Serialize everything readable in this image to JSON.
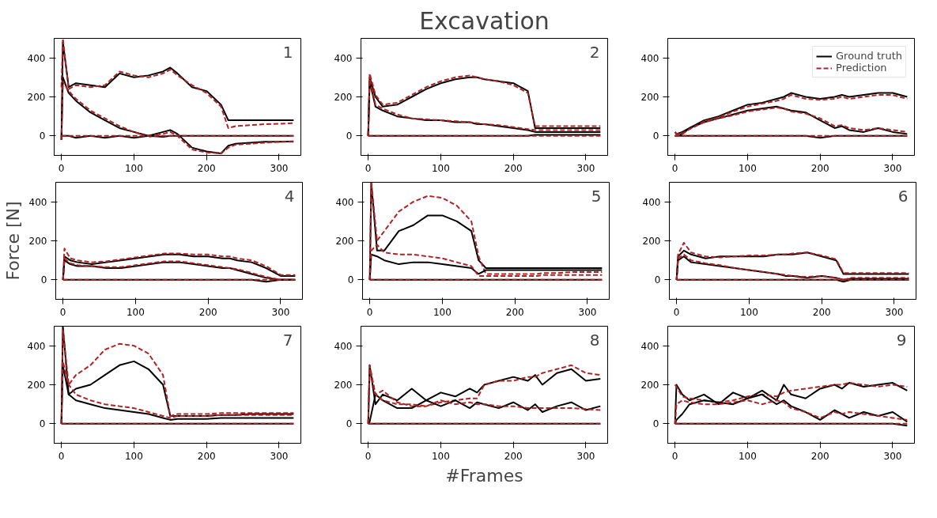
{
  "chart_data": [
    {
      "type": "line",
      "annotations": [
        "1"
      ],
      "x": [
        0,
        2,
        10,
        20,
        40,
        60,
        80,
        100,
        120,
        140,
        150,
        160,
        180,
        200,
        220,
        230,
        240,
        260,
        280,
        300,
        320
      ],
      "xlim": [
        -10,
        330
      ],
      "xticks": [
        0,
        100,
        200,
        300
      ],
      "ylim": [
        -100,
        500
      ],
      "yticks": [
        0,
        200,
        400
      ],
      "grid": false,
      "legend": false,
      "series": [
        {
          "color": "#000000",
          "line_style": "solid",
          "values": [
            -20,
            480,
            250,
            270,
            260,
            250,
            320,
            300,
            310,
            330,
            350,
            320,
            250,
            230,
            160,
            80,
            80,
            80,
            80,
            80,
            80
          ]
        },
        {
          "color": "#b22222",
          "line_style": "dashed",
          "values": [
            250,
            500,
            240,
            260,
            250,
            260,
            330,
            310,
            300,
            320,
            340,
            310,
            260,
            220,
            150,
            40,
            50,
            55,
            60,
            62,
            65
          ]
        },
        {
          "color": "#000000",
          "line_style": "solid",
          "values": [
            -20,
            300,
            220,
            180,
            120,
            80,
            40,
            20,
            0,
            20,
            30,
            10,
            -60,
            -80,
            -90,
            -50,
            -40,
            -35,
            -30,
            -30,
            -28
          ]
        },
        {
          "color": "#b22222",
          "line_style": "dashed",
          "values": [
            -20,
            280,
            230,
            190,
            130,
            90,
            50,
            20,
            -5,
            10,
            20,
            0,
            -70,
            -85,
            -90,
            -60,
            -45,
            -40,
            -35,
            -30,
            -30
          ]
        },
        {
          "color": "#000000",
          "line_style": "solid",
          "values": [
            0,
            0,
            0,
            -10,
            0,
            -10,
            0,
            -10,
            0,
            -5,
            0,
            0,
            0,
            0,
            0,
            0,
            0,
            0,
            0,
            0,
            0
          ]
        },
        {
          "color": "#b22222",
          "line_style": "dashed",
          "values": [
            0,
            0,
            0,
            0,
            0,
            0,
            0,
            0,
            0,
            0,
            0,
            0,
            0,
            0,
            0,
            0,
            0,
            0,
            0,
            0,
            0
          ]
        }
      ]
    },
    {
      "type": "line",
      "title": "Excavation",
      "annotations": [
        "2"
      ],
      "x": [
        0,
        2,
        10,
        20,
        40,
        60,
        80,
        100,
        120,
        140,
        150,
        160,
        180,
        200,
        220,
        230,
        240,
        260,
        280,
        300,
        320
      ],
      "xlim": [
        -10,
        330
      ],
      "xticks": [
        0,
        100,
        200,
        300
      ],
      "ylim": [
        -100,
        500
      ],
      "yticks": [
        0,
        200,
        400
      ],
      "grid": false,
      "legend": false,
      "series": [
        {
          "color": "#000000",
          "line_style": "solid",
          "values": [
            0,
            300,
            200,
            150,
            160,
            200,
            240,
            270,
            290,
            300,
            300,
            290,
            280,
            270,
            230,
            40,
            40,
            40,
            40,
            40,
            40
          ]
        },
        {
          "color": "#b22222",
          "line_style": "dashed",
          "values": [
            0,
            320,
            210,
            160,
            170,
            210,
            250,
            280,
            300,
            310,
            300,
            290,
            280,
            260,
            220,
            50,
            50,
            50,
            50,
            50,
            50
          ]
        },
        {
          "color": "#000000",
          "line_style": "solid",
          "values": [
            0,
            280,
            150,
            130,
            100,
            90,
            80,
            80,
            70,
            70,
            60,
            60,
            50,
            40,
            30,
            20,
            20,
            20,
            20,
            20,
            20
          ]
        },
        {
          "color": "#b22222",
          "line_style": "dashed",
          "values": [
            0,
            290,
            160,
            140,
            110,
            90,
            85,
            80,
            75,
            70,
            65,
            60,
            55,
            45,
            35,
            30,
            30,
            30,
            30,
            30,
            30
          ]
        },
        {
          "color": "#000000",
          "line_style": "solid",
          "values": [
            0,
            0,
            0,
            0,
            0,
            0,
            0,
            0,
            0,
            0,
            0,
            0,
            0,
            0,
            0,
            5,
            5,
            5,
            5,
            5,
            5
          ]
        },
        {
          "color": "#b22222",
          "line_style": "dashed",
          "values": [
            0,
            0,
            0,
            0,
            0,
            0,
            0,
            0,
            0,
            0,
            0,
            0,
            0,
            0,
            0,
            0,
            0,
            0,
            0,
            0,
            0
          ]
        }
      ]
    },
    {
      "type": "line",
      "x": [
        0,
        2,
        10,
        20,
        40,
        60,
        80,
        100,
        120,
        140,
        150,
        160,
        180,
        200,
        220,
        230,
        240,
        260,
        280,
        300,
        320
      ],
      "xlim": [
        -10,
        330
      ],
      "xticks": [
        0,
        100,
        200,
        300
      ],
      "ylim": [
        -100,
        500
      ],
      "yticks": [
        0,
        200,
        400
      ],
      "grid": false,
      "legend": "top right",
      "series": [
        {
          "name": "Ground truth",
          "color": "#000000",
          "line_style": "solid",
          "values": [
            20,
            10,
            20,
            40,
            80,
            100,
            130,
            160,
            170,
            190,
            200,
            220,
            200,
            190,
            200,
            210,
            200,
            210,
            220,
            220,
            200
          ]
        },
        {
          "name": "Prediction",
          "color": "#b22222",
          "line_style": "dashed",
          "values": [
            20,
            10,
            15,
            35,
            75,
            95,
            125,
            150,
            165,
            180,
            190,
            210,
            190,
            185,
            190,
            200,
            190,
            200,
            210,
            210,
            190
          ]
        },
        {
          "color": "#000000",
          "line_style": "solid",
          "values": [
            0,
            0,
            10,
            40,
            70,
            90,
            110,
            130,
            140,
            150,
            140,
            130,
            120,
            80,
            40,
            50,
            30,
            20,
            40,
            20,
            10
          ]
        },
        {
          "color": "#b22222",
          "line_style": "dashed",
          "values": [
            0,
            0,
            10,
            35,
            70,
            90,
            105,
            125,
            135,
            145,
            140,
            125,
            115,
            90,
            50,
            55,
            40,
            30,
            40,
            30,
            20
          ]
        },
        {
          "color": "#000000",
          "line_style": "solid",
          "values": [
            0,
            0,
            0,
            0,
            0,
            0,
            0,
            0,
            0,
            0,
            0,
            0,
            0,
            -10,
            0,
            0,
            0,
            0,
            0,
            0,
            0
          ]
        },
        {
          "color": "#b22222",
          "line_style": "dashed",
          "values": [
            0,
            0,
            0,
            0,
            0,
            0,
            0,
            0,
            0,
            0,
            0,
            0,
            0,
            0,
            0,
            0,
            0,
            0,
            0,
            0,
            0
          ]
        }
      ]
    },
    {
      "type": "line",
      "ylabel": "Force [N]",
      "annotations": [
        "4"
      ],
      "x": [
        0,
        2,
        10,
        20,
        40,
        60,
        80,
        100,
        120,
        140,
        150,
        160,
        180,
        200,
        220,
        230,
        240,
        260,
        280,
        300,
        320
      ],
      "xlim": [
        -10,
        330
      ],
      "xticks": [
        0,
        100,
        200,
        300
      ],
      "ylim": [
        -100,
        500
      ],
      "yticks": [
        0,
        200,
        400
      ],
      "grid": false,
      "legend": false,
      "series": [
        {
          "color": "#000000",
          "line_style": "solid",
          "values": [
            0,
            120,
            100,
            90,
            80,
            90,
            100,
            110,
            120,
            130,
            130,
            130,
            120,
            120,
            110,
            110,
            100,
            90,
            60,
            20,
            20
          ]
        },
        {
          "color": "#b22222",
          "line_style": "dashed",
          "values": [
            0,
            160,
            110,
            100,
            90,
            95,
            105,
            115,
            125,
            135,
            135,
            135,
            130,
            130,
            120,
            120,
            110,
            100,
            70,
            25,
            25
          ]
        },
        {
          "color": "#000000",
          "line_style": "solid",
          "values": [
            0,
            100,
            80,
            70,
            70,
            60,
            60,
            70,
            80,
            90,
            90,
            90,
            80,
            70,
            60,
            60,
            50,
            30,
            10,
            0,
            0
          ]
        },
        {
          "color": "#b22222",
          "line_style": "dashed",
          "values": [
            0,
            110,
            85,
            75,
            70,
            65,
            65,
            75,
            85,
            95,
            95,
            95,
            85,
            75,
            65,
            60,
            55,
            35,
            15,
            0,
            0
          ]
        },
        {
          "color": "#000000",
          "line_style": "solid",
          "values": [
            0,
            0,
            0,
            0,
            0,
            0,
            0,
            0,
            0,
            0,
            0,
            0,
            0,
            0,
            0,
            0,
            0,
            0,
            -10,
            0,
            0
          ]
        },
        {
          "color": "#b22222",
          "line_style": "dashed",
          "values": [
            0,
            0,
            0,
            0,
            0,
            0,
            0,
            0,
            0,
            0,
            0,
            0,
            0,
            0,
            0,
            0,
            0,
            0,
            0,
            0,
            0
          ]
        }
      ]
    },
    {
      "type": "line",
      "annotations": [
        "5"
      ],
      "x": [
        0,
        2,
        10,
        20,
        40,
        60,
        80,
        100,
        120,
        140,
        150,
        160,
        180,
        200,
        220,
        230,
        240,
        260,
        280,
        300,
        320
      ],
      "xlim": [
        -10,
        330
      ],
      "xticks": [
        0,
        100,
        200,
        300
      ],
      "ylim": [
        -100,
        500
      ],
      "yticks": [
        0,
        200,
        400
      ],
      "grid": false,
      "legend": false,
      "series": [
        {
          "color": "#000000",
          "line_style": "solid",
          "values": [
            0,
            500,
            150,
            150,
            250,
            280,
            330,
            330,
            300,
            250,
            100,
            60,
            60,
            60,
            60,
            60,
            60,
            60,
            60,
            60,
            60
          ]
        },
        {
          "color": "#b22222",
          "line_style": "dashed",
          "values": [
            0,
            500,
            200,
            250,
            350,
            400,
            430,
            420,
            380,
            300,
            120,
            30,
            30,
            30,
            30,
            30,
            35,
            35,
            40,
            40,
            40
          ]
        },
        {
          "color": "#000000",
          "line_style": "solid",
          "values": [
            0,
            130,
            120,
            100,
            80,
            90,
            90,
            80,
            70,
            60,
            30,
            50,
            50,
            50,
            50,
            50,
            50,
            50,
            50,
            50,
            50
          ]
        },
        {
          "color": "#b22222",
          "line_style": "dashed",
          "values": [
            0,
            150,
            180,
            140,
            130,
            130,
            120,
            110,
            90,
            70,
            20,
            20,
            20,
            20,
            20,
            20,
            25,
            25,
            25,
            25,
            25
          ]
        },
        {
          "color": "#000000",
          "line_style": "solid",
          "values": [
            0,
            0,
            0,
            0,
            0,
            0,
            0,
            0,
            0,
            0,
            0,
            0,
            0,
            0,
            0,
            0,
            0,
            0,
            0,
            0,
            0
          ]
        },
        {
          "color": "#b22222",
          "line_style": "dashed",
          "values": [
            0,
            0,
            0,
            0,
            0,
            0,
            0,
            0,
            0,
            0,
            0,
            0,
            0,
            0,
            0,
            0,
            0,
            0,
            0,
            0,
            0
          ]
        }
      ]
    },
    {
      "type": "line",
      "annotations": [
        "6"
      ],
      "x": [
        0,
        2,
        10,
        20,
        40,
        60,
        80,
        100,
        120,
        140,
        150,
        160,
        180,
        200,
        220,
        230,
        240,
        260,
        280,
        300,
        320
      ],
      "xlim": [
        -10,
        330
      ],
      "xticks": [
        0,
        100,
        200,
        300
      ],
      "ylim": [
        -100,
        500
      ],
      "yticks": [
        0,
        200,
        400
      ],
      "grid": false,
      "legend": false,
      "series": [
        {
          "color": "#000000",
          "line_style": "solid",
          "values": [
            0,
            120,
            150,
            130,
            110,
            120,
            120,
            120,
            120,
            130,
            130,
            130,
            140,
            120,
            100,
            30,
            30,
            30,
            30,
            30,
            30
          ]
        },
        {
          "color": "#b22222",
          "line_style": "dashed",
          "values": [
            0,
            130,
            190,
            140,
            120,
            115,
            120,
            125,
            125,
            130,
            130,
            135,
            140,
            125,
            105,
            35,
            35,
            35,
            35,
            35,
            35
          ]
        },
        {
          "color": "#000000",
          "line_style": "solid",
          "values": [
            0,
            100,
            120,
            90,
            80,
            70,
            60,
            50,
            40,
            30,
            20,
            20,
            10,
            20,
            10,
            0,
            5,
            5,
            5,
            5,
            5
          ]
        },
        {
          "color": "#b22222",
          "line_style": "dashed",
          "values": [
            0,
            110,
            130,
            100,
            85,
            75,
            60,
            50,
            40,
            30,
            25,
            20,
            15,
            20,
            10,
            0,
            10,
            10,
            10,
            10,
            10
          ]
        },
        {
          "color": "#000000",
          "line_style": "solid",
          "values": [
            0,
            0,
            0,
            0,
            0,
            0,
            0,
            0,
            0,
            0,
            0,
            0,
            0,
            0,
            0,
            -10,
            0,
            0,
            0,
            0,
            0
          ]
        },
        {
          "color": "#b22222",
          "line_style": "dashed",
          "values": [
            0,
            0,
            0,
            0,
            0,
            0,
            0,
            0,
            0,
            0,
            0,
            0,
            0,
            0,
            0,
            0,
            0,
            0,
            0,
            0,
            0
          ]
        }
      ]
    },
    {
      "type": "line",
      "annotations": [
        "7"
      ],
      "x": [
        0,
        2,
        10,
        20,
        40,
        60,
        80,
        100,
        120,
        140,
        150,
        160,
        180,
        200,
        220,
        230,
        240,
        260,
        280,
        300,
        320
      ],
      "xlim": [
        -10,
        330
      ],
      "xticks": [
        0,
        100,
        200,
        300
      ],
      "ylim": [
        -100,
        500
      ],
      "yticks": [
        0,
        200,
        400
      ],
      "grid": false,
      "legend": false,
      "series": [
        {
          "color": "#000000",
          "line_style": "solid",
          "values": [
            0,
            500,
            150,
            180,
            200,
            250,
            300,
            320,
            280,
            200,
            40,
            40,
            40,
            40,
            45,
            45,
            45,
            50,
            50,
            50,
            50
          ]
        },
        {
          "color": "#b22222",
          "line_style": "dashed",
          "values": [
            0,
            480,
            200,
            250,
            300,
            380,
            410,
            400,
            360,
            250,
            40,
            50,
            50,
            50,
            55,
            55,
            55,
            55,
            55,
            55,
            55
          ]
        },
        {
          "color": "#000000",
          "line_style": "solid",
          "values": [
            0,
            300,
            150,
            120,
            100,
            80,
            70,
            60,
            50,
            30,
            20,
            25,
            25,
            25,
            30,
            30,
            30,
            30,
            30,
            30,
            30
          ]
        },
        {
          "color": "#b22222",
          "line_style": "dashed",
          "values": [
            0,
            320,
            200,
            150,
            120,
            100,
            90,
            80,
            60,
            40,
            30,
            40,
            40,
            40,
            45,
            45,
            45,
            45,
            45,
            45,
            45
          ]
        },
        {
          "color": "#000000",
          "line_style": "solid",
          "values": [
            0,
            0,
            0,
            0,
            0,
            0,
            0,
            0,
            0,
            0,
            0,
            0,
            0,
            0,
            0,
            0,
            0,
            0,
            0,
            0,
            0
          ]
        },
        {
          "color": "#b22222",
          "line_style": "dashed",
          "values": [
            0,
            0,
            0,
            0,
            0,
            0,
            0,
            0,
            0,
            0,
            0,
            0,
            0,
            0,
            0,
            0,
            0,
            0,
            0,
            0,
            0
          ]
        }
      ]
    },
    {
      "type": "line",
      "xlabel": "#Frames",
      "annotations": [
        "8"
      ],
      "x": [
        0,
        2,
        10,
        20,
        40,
        60,
        80,
        100,
        120,
        140,
        150,
        160,
        180,
        200,
        220,
        230,
        240,
        260,
        280,
        300,
        320
      ],
      "xlim": [
        -10,
        330
      ],
      "xticks": [
        0,
        100,
        200,
        300
      ],
      "ylim": [
        -100,
        500
      ],
      "yticks": [
        0,
        200,
        400
      ],
      "grid": false,
      "legend": false,
      "series": [
        {
          "color": "#000000",
          "line_style": "solid",
          "values": [
            0,
            300,
            100,
            150,
            120,
            180,
            120,
            160,
            140,
            180,
            160,
            200,
            220,
            240,
            220,
            250,
            200,
            260,
            280,
            220,
            230
          ]
        },
        {
          "color": "#b22222",
          "line_style": "dashed",
          "values": [
            0,
            300,
            150,
            170,
            110,
            90,
            90,
            110,
            120,
            130,
            130,
            200,
            220,
            220,
            240,
            240,
            260,
            280,
            300,
            260,
            250
          ]
        },
        {
          "color": "#000000",
          "line_style": "solid",
          "values": [
            0,
            10,
            150,
            120,
            80,
            80,
            120,
            90,
            120,
            80,
            110,
            100,
            80,
            110,
            70,
            100,
            60,
            90,
            110,
            70,
            90
          ]
        },
        {
          "color": "#b22222",
          "line_style": "dashed",
          "values": [
            0,
            280,
            150,
            120,
            100,
            100,
            90,
            120,
            100,
            110,
            100,
            100,
            90,
            90,
            80,
            80,
            80,
            80,
            80,
            75,
            70
          ]
        },
        {
          "color": "#000000",
          "line_style": "solid",
          "values": [
            0,
            0,
            0,
            0,
            0,
            0,
            0,
            0,
            0,
            0,
            0,
            0,
            0,
            0,
            0,
            0,
            0,
            0,
            0,
            0,
            0
          ]
        },
        {
          "color": "#b22222",
          "line_style": "dashed",
          "values": [
            0,
            0,
            0,
            0,
            0,
            0,
            0,
            0,
            0,
            0,
            0,
            0,
            0,
            0,
            0,
            0,
            0,
            0,
            0,
            0,
            0
          ]
        }
      ]
    },
    {
      "type": "line",
      "annotations": [
        "9"
      ],
      "x": [
        0,
        2,
        10,
        20,
        40,
        60,
        80,
        100,
        120,
        140,
        150,
        160,
        180,
        200,
        220,
        230,
        240,
        260,
        280,
        300,
        320
      ],
      "xlim": [
        -10,
        330
      ],
      "xticks": [
        0,
        100,
        200,
        300
      ],
      "ylim": [
        -100,
        500
      ],
      "yticks": [
        0,
        200,
        400
      ],
      "grid": false,
      "legend": false,
      "series": [
        {
          "color": "#000000",
          "line_style": "solid",
          "values": [
            0,
            200,
            150,
            120,
            150,
            100,
            160,
            130,
            170,
            120,
            200,
            150,
            130,
            180,
            200,
            180,
            210,
            190,
            200,
            210,
            170
          ]
        },
        {
          "color": "#b22222",
          "line_style": "dashed",
          "values": [
            200,
            190,
            140,
            130,
            120,
            110,
            120,
            140,
            150,
            140,
            160,
            170,
            180,
            190,
            200,
            200,
            210,
            200,
            190,
            200,
            190
          ]
        },
        {
          "color": "#000000",
          "line_style": "solid",
          "values": [
            0,
            20,
            50,
            100,
            120,
            110,
            100,
            130,
            150,
            100,
            120,
            90,
            60,
            20,
            70,
            50,
            30,
            60,
            40,
            60,
            10
          ]
        },
        {
          "color": "#b22222",
          "line_style": "dashed",
          "values": [
            0,
            100,
            120,
            110,
            100,
            100,
            110,
            120,
            100,
            120,
            110,
            80,
            60,
            30,
            60,
            50,
            60,
            50,
            40,
            30,
            20
          ]
        },
        {
          "color": "#000000",
          "line_style": "solid",
          "values": [
            0,
            0,
            0,
            0,
            0,
            0,
            0,
            0,
            0,
            0,
            0,
            0,
            0,
            0,
            0,
            0,
            0,
            0,
            0,
            0,
            -10
          ]
        },
        {
          "color": "#b22222",
          "line_style": "dashed",
          "values": [
            0,
            0,
            0,
            0,
            0,
            0,
            0,
            0,
            0,
            0,
            0,
            0,
            0,
            0,
            0,
            0,
            0,
            0,
            0,
            0,
            0
          ]
        }
      ]
    }
  ]
}
